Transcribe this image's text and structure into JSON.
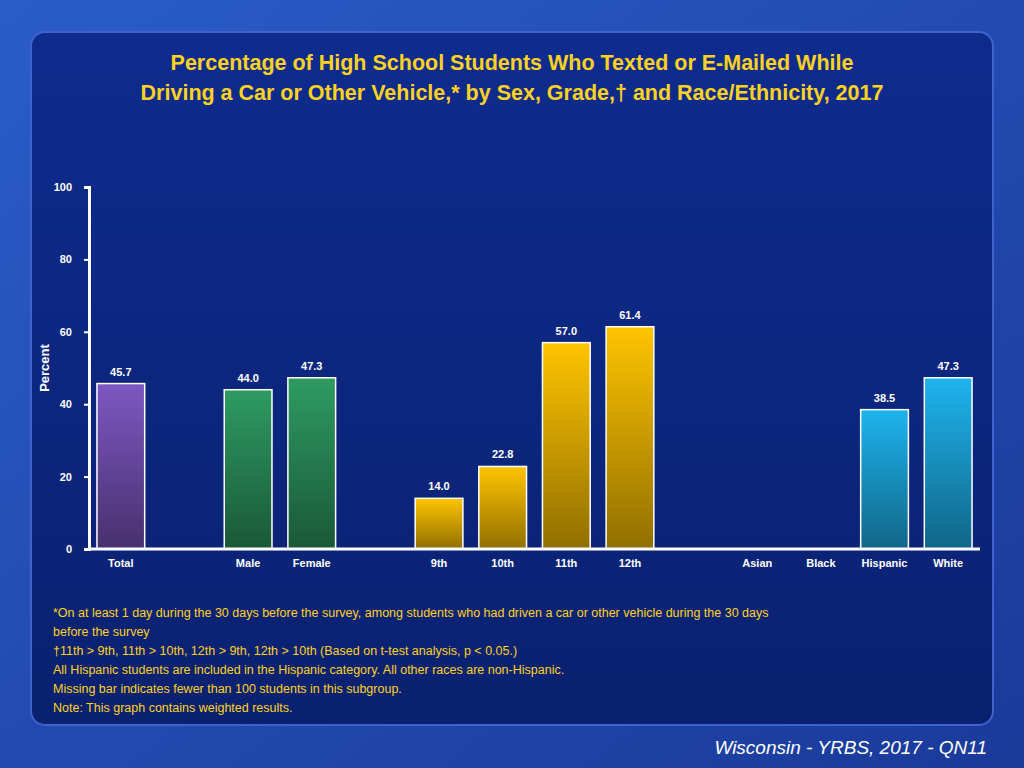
{
  "chart_data": {
    "type": "bar",
    "title": "Percentage of High School Students Who Texted or E-Mailed While\nDriving a Car or Other Vehicle,* by Sex, Grade,† and Race/Ethnicity, 2017",
    "y_label": "Percent",
    "categories": [
      "Total",
      null,
      "Male",
      "Female",
      null,
      "9th",
      "10th",
      "11th",
      "12th",
      null,
      "Asian",
      "Black",
      "Hispanic",
      "White"
    ],
    "values": [
      45.7,
      null,
      44.0,
      47.3,
      null,
      14.0,
      22.8,
      57.0,
      61.4,
      null,
      null,
      null,
      38.5,
      47.3
    ],
    "value_labels": [
      "45.7",
      null,
      "44.0",
      "47.3",
      null,
      "14.0",
      "22.8",
      "57.0",
      "61.4",
      null,
      null,
      null,
      "38.5",
      "47.3"
    ],
    "colors": [
      "#7e57c2",
      null,
      "#2e9b62",
      "#2e9b62",
      null,
      "#ffc400",
      "#ffc400",
      "#ffc400",
      "#ffc400",
      null,
      "#1eb4ee",
      "#1eb4ee",
      "#1eb4ee",
      "#1eb4ee"
    ],
    "ylim": [
      0,
      100
    ],
    "yticks": [
      0,
      20,
      40,
      60,
      80,
      100
    ],
    "grid": false,
    "data_labels": true,
    "notes": [
      "*On at least 1 day during the 30 days before the survey, among students who had driven a car or other vehicle during the 30 days",
      "before the survey",
      "†11th > 9th, 11th > 10th, 12th > 9th, 12th > 10th (Based on t-test analysis, p < 0.05.)",
      "All Hispanic students are included in the Hispanic category.  All other races are non-Hispanic.",
      "Missing bar indicates fewer than 100 students in this subgroup.",
      "Note: This graph contains weighted results."
    ],
    "source": "Wisconsin - YRBS, 2017 - QN11"
  }
}
